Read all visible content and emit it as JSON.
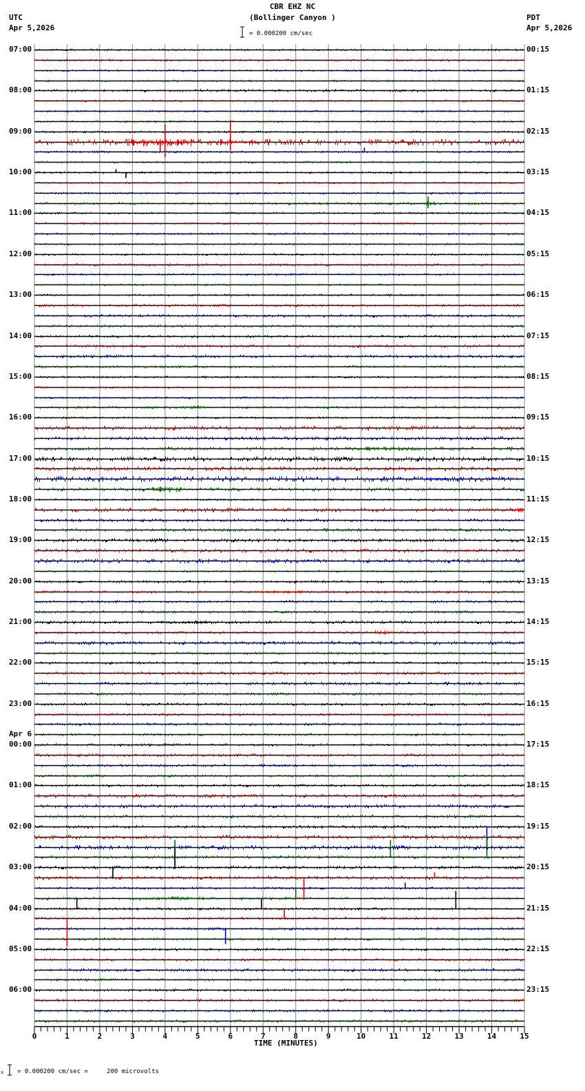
{
  "header": {
    "station": "CBR EHZ NC",
    "location": "(Bollinger Canyon )",
    "left_tz": "UTC",
    "left_date": "Apr 5,2026",
    "right_tz": "PDT",
    "right_date": "Apr 5,2026",
    "scale_text": "= 0.000200 cm/sec"
  },
  "footer": {
    "scale_text": "= 0.000200 cm/sec =     200 microvolts",
    "x_label": "TIME (MINUTES)"
  },
  "chart_data": {
    "type": "line",
    "title": "CBR EHZ NC (Bollinger Canyon ) seismogram, 24-hour helicorder",
    "xlabel": "TIME (MINUTES)",
    "ylabel": "",
    "xlim": [
      0,
      15
    ],
    "x_ticks": [
      0,
      1,
      2,
      3,
      4,
      5,
      6,
      7,
      8,
      9,
      10,
      11,
      12,
      13,
      14,
      15
    ],
    "grid": true,
    "traces_per_hour": 4,
    "trace_colors": [
      "#000000",
      "#dd0000",
      "#0000cc",
      "#006600"
    ],
    "scale": "0.000200 cm/sec = 200 microvolts",
    "left_labels_utc": [
      "07:00",
      "08:00",
      "09:00",
      "10:00",
      "11:00",
      "12:00",
      "13:00",
      "14:00",
      "15:00",
      "16:00",
      "17:00",
      "18:00",
      "19:00",
      "20:00",
      "21:00",
      "22:00",
      "23:00",
      "00:00",
      "01:00",
      "02:00",
      "03:00",
      "04:00",
      "05:00",
      "06:00"
    ],
    "left_date_change": {
      "label": "Apr 6",
      "hour_index": 17
    },
    "right_labels_pdt": [
      "00:15",
      "01:15",
      "02:15",
      "03:15",
      "04:15",
      "05:15",
      "06:15",
      "07:15",
      "08:15",
      "09:15",
      "10:15",
      "11:15",
      "12:15",
      "13:15",
      "14:15",
      "15:15",
      "16:15",
      "17:15",
      "18:15",
      "19:15",
      "20:15",
      "21:15",
      "22:15",
      "23:15"
    ],
    "noise_levels": [
      1,
      1,
      1,
      1,
      1.2,
      1,
      1,
      1,
      1,
      2.5,
      1,
      1,
      1,
      1,
      1,
      1.2,
      1,
      1,
      1,
      1,
      1,
      1.2,
      1,
      1,
      1,
      1.2,
      1.3,
      1.2,
      1.2,
      1.3,
      1.4,
      1.2,
      1,
      1,
      1,
      1.2,
      1,
      1.8,
      1.6,
      1.6,
      2,
      1.8,
      2.2,
      1.6,
      1,
      1.8,
      1.4,
      1.4,
      1.6,
      1.6,
      1.8,
      1,
      1.2,
      1.2,
      1.2,
      1.2,
      1.4,
      1.2,
      1.6,
      1.2,
      1.2,
      1.4,
      1.4,
      1.2,
      1.2,
      1.2,
      1.2,
      1.2,
      1.2,
      1.4,
      1.2,
      1.2,
      1.2,
      1.6,
      1.6,
      1.4,
      1.4,
      1.8,
      1.8,
      1.4,
      1.4,
      1.6,
      1.2,
      1.2,
      1.2,
      1.2,
      1.2,
      1.2,
      1.2,
      1.2,
      1.4,
      1.2,
      1.2,
      1.2,
      1.2,
      1.2
    ],
    "events": [
      {
        "trace": 9,
        "start": 2.9,
        "end": 4.9,
        "amp": 6,
        "color": "#dd0000"
      },
      {
        "trace": 9,
        "spike": 4.0,
        "up": 26,
        "down": 22
      },
      {
        "trace": 9,
        "spike": 3.85,
        "up": 4,
        "down": 14
      },
      {
        "trace": 9,
        "start": 5.7,
        "end": 6.8,
        "amp": 6
      },
      {
        "trace": 9,
        "spike": 6.0,
        "up": 30,
        "down": 12
      },
      {
        "trace": 10,
        "spike": 10.1,
        "up": 6,
        "down": 0
      },
      {
        "trace": 12,
        "spike": 2.5,
        "up": 5,
        "down": 0
      },
      {
        "trace": 12,
        "spike": 2.8,
        "up": 0,
        "down": 8
      },
      {
        "trace": 15,
        "start": 13.3,
        "end": 13.7,
        "amp": 2
      },
      {
        "trace": 14,
        "spike": 11.0,
        "up": 3,
        "down": 0
      },
      {
        "trace": 15,
        "spike": 12.05,
        "up": 10,
        "down": 7
      },
      {
        "trace": 15,
        "start": 12.0,
        "end": 12.4,
        "amp": 4
      },
      {
        "trace": 35,
        "start": 4.5,
        "end": 5.2,
        "amp": 3
      },
      {
        "trace": 39,
        "start": 10.0,
        "end": 11.8,
        "amp": 3
      },
      {
        "trace": 43,
        "start": 3.6,
        "end": 4.5,
        "amp": 6
      },
      {
        "trace": 42,
        "start": 12.0,
        "end": 12.6,
        "amp": 3
      },
      {
        "trace": 45,
        "start": 14.6,
        "end": 15,
        "amp": 4
      },
      {
        "trace": 53,
        "start": 6.8,
        "end": 8.2,
        "amp": 2
      },
      {
        "trace": 57,
        "start": 10.4,
        "end": 11.0,
        "amp": 4
      },
      {
        "trace": 56,
        "start": 3.8,
        "end": 5.3,
        "amp": 2.5
      },
      {
        "trace": 77,
        "spike": 13.85,
        "up": 0,
        "down": 15
      },
      {
        "trace": 78,
        "spike": 13.85,
        "up": 30,
        "down": 0
      },
      {
        "trace": 79,
        "spike": 4.3,
        "up": 25,
        "down": 12
      },
      {
        "trace": 79,
        "spike": 10.9,
        "up": 25,
        "down": 0
      },
      {
        "trace": 79,
        "spike": 13.85,
        "up": 30,
        "down": 0
      },
      {
        "trace": 80,
        "spike": 4.3,
        "up": 28,
        "down": 2
      },
      {
        "trace": 80,
        "spike": 2.4,
        "up": 0,
        "down": 16
      },
      {
        "trace": 81,
        "spike": 12.25,
        "up": 8,
        "down": 0
      },
      {
        "trace": 81,
        "spike": 8.25,
        "up": 0,
        "down": 32
      },
      {
        "trace": 82,
        "spike": 11.35,
        "up": 8,
        "down": 0
      },
      {
        "trace": 83,
        "start": 3.2,
        "end": 5.4,
        "amp": 3
      },
      {
        "trace": 83,
        "spike": 8.0,
        "up": 14,
        "down": 0
      },
      {
        "trace": 84,
        "spike": 1.3,
        "up": 14,
        "down": 0
      },
      {
        "trace": 84,
        "spike": 6.95,
        "up": 14,
        "down": 0
      },
      {
        "trace": 84,
        "spike": 12.9,
        "up": 26,
        "down": 0
      },
      {
        "trace": 85,
        "spike": 7.65,
        "up": 14,
        "down": 0
      },
      {
        "trace": 85,
        "spike": 1.0,
        "up": 0,
        "down": 40
      },
      {
        "trace": 86,
        "spike": 5.85,
        "up": 0,
        "down": 22
      }
    ]
  }
}
